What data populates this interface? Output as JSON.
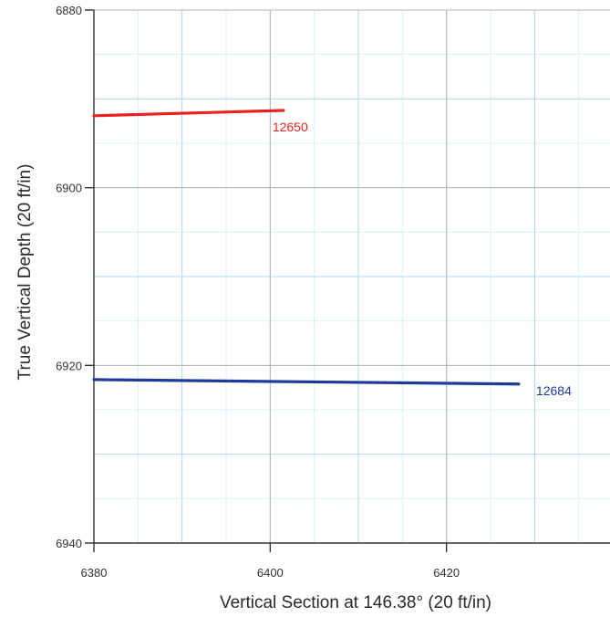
{
  "chart_data": {
    "type": "line",
    "xlabel": "Vertical Section at 146.38° (20 ft/in)",
    "ylabel": "True Vertical Depth (20 ft/in)",
    "xlim": [
      6380,
      6440
    ],
    "ylim": [
      6880,
      6940
    ],
    "y_inverted": true,
    "x_ticks": [
      "6380",
      "6400",
      "6420"
    ],
    "y_ticks": [
      "6880",
      "6900",
      "6920",
      "6940"
    ],
    "grid": true,
    "series": [
      {
        "name": "12650",
        "color": "#e8231f",
        "points": [
          [
            6380,
            6891.9
          ],
          [
            6401.5,
            6891.3
          ]
        ]
      },
      {
        "name": "12684",
        "color": "#1e3a9a",
        "points": [
          [
            6380,
            6921.6
          ],
          [
            6428.2,
            6922.1
          ]
        ]
      }
    ]
  }
}
